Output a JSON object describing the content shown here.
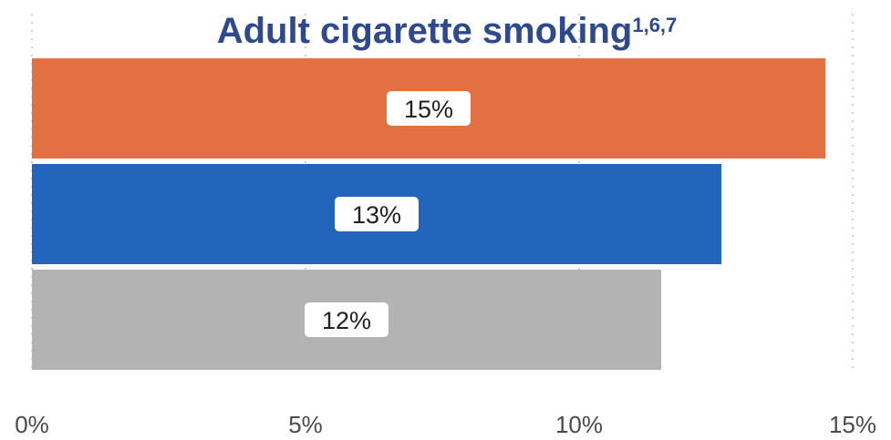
{
  "chart_data": {
    "type": "bar",
    "orientation": "horizontal",
    "title": "Adult cigarette smoking",
    "title_superscript": "1,6,7",
    "categories": [
      "",
      "",
      ""
    ],
    "values": [
      14.5,
      12.6,
      11.5
    ],
    "data_labels": [
      "15%",
      "13%",
      "12%"
    ],
    "bar_colors": [
      "#e37042",
      "#2266bb",
      "#b3b3b3"
    ],
    "title_color": "#2e4a8c",
    "xlim": [
      0,
      15
    ],
    "x_ticks": [
      0,
      5,
      10,
      15
    ],
    "x_tick_labels": [
      "0%",
      "5%",
      "10%",
      "15%"
    ],
    "grid": "vertical-dotted",
    "legend": "none"
  }
}
